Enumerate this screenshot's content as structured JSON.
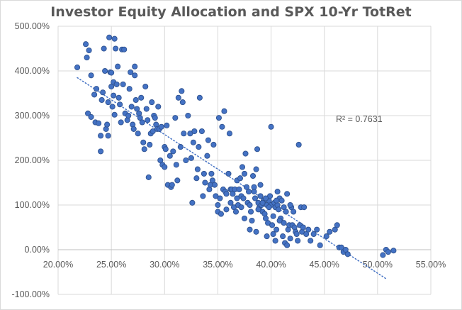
{
  "chart_data": {
    "type": "scatter",
    "title": "Investor Equity Allocation and SPX 10-Yr TotRet",
    "xlabel": "",
    "ylabel": "",
    "xlim": [
      0.2,
      0.55
    ],
    "ylim": [
      -1.0,
      5.0
    ],
    "x_ticks": [
      "20.00%",
      "25.00%",
      "30.00%",
      "35.00%",
      "40.00%",
      "45.00%",
      "50.00%",
      "55.00%"
    ],
    "y_ticks": [
      "500.00%",
      "400.00%",
      "300.00%",
      "200.00%",
      "100.00%",
      "0.00%",
      "-100.00%"
    ],
    "grid": true,
    "legend": "none",
    "colors": {
      "marker": "#4472c4",
      "marker_edge": "#2f528f",
      "trendline": "#4472c4",
      "grid": "#d9d9d9"
    },
    "trendline": {
      "type": "linear",
      "r_squared_label": "R² = 0.7631",
      "x_start": 0.218,
      "y_start": 3.85,
      "x_end": 0.508,
      "y_end": -0.65
    },
    "points": [
      [
        0.218,
        4.08
      ],
      [
        0.226,
        4.6
      ],
      [
        0.227,
        4.3
      ],
      [
        0.229,
        4.46
      ],
      [
        0.231,
        3.9
      ],
      [
        0.234,
        3.47
      ],
      [
        0.236,
        3.6
      ],
      [
        0.228,
        3.05
      ],
      [
        0.231,
        2.97
      ],
      [
        0.235,
        2.85
      ],
      [
        0.238,
        2.83
      ],
      [
        0.24,
        2.2
      ],
      [
        0.24,
        2.55
      ],
      [
        0.241,
        3.35
      ],
      [
        0.242,
        3.52
      ],
      [
        0.243,
        4.5
      ],
      [
        0.244,
        4.0
      ],
      [
        0.245,
        2.7
      ],
      [
        0.246,
        2.8
      ],
      [
        0.247,
        2.55
      ],
      [
        0.247,
        3.3
      ],
      [
        0.248,
        4.75
      ],
      [
        0.249,
        3.97
      ],
      [
        0.25,
        3.96
      ],
      [
        0.25,
        3.65
      ],
      [
        0.251,
        3.2
      ],
      [
        0.252,
        3.45
      ],
      [
        0.252,
        3.75
      ],
      [
        0.253,
        4.72
      ],
      [
        0.253,
        3.02
      ],
      [
        0.254,
        4.5
      ],
      [
        0.255,
        3.7
      ],
      [
        0.256,
        4.1
      ],
      [
        0.257,
        3.4
      ],
      [
        0.258,
        3.25
      ],
      [
        0.259,
        2.85
      ],
      [
        0.26,
        4.48
      ],
      [
        0.261,
        3.7
      ],
      [
        0.262,
        4.48
      ],
      [
        0.263,
        3.05
      ],
      [
        0.265,
        2.9
      ],
      [
        0.266,
        3.0
      ],
      [
        0.267,
        3.6
      ],
      [
        0.268,
        3.97
      ],
      [
        0.269,
        3.2
      ],
      [
        0.27,
        2.8
      ],
      [
        0.271,
        2.7
      ],
      [
        0.272,
        4.1
      ],
      [
        0.272,
        3.9
      ],
      [
        0.273,
        3.35
      ],
      [
        0.274,
        3.15
      ],
      [
        0.275,
        2.6
      ],
      [
        0.276,
        3.05
      ],
      [
        0.277,
        2.95
      ],
      [
        0.278,
        3.4
      ],
      [
        0.279,
        2.85
      ],
      [
        0.28,
        2.4
      ],
      [
        0.281,
        2.25
      ],
      [
        0.282,
        3.65
      ],
      [
        0.283,
        3.15
      ],
      [
        0.284,
        2.9
      ],
      [
        0.285,
        1.62
      ],
      [
        0.286,
        2.35
      ],
      [
        0.287,
        2.6
      ],
      [
        0.288,
        3.3
      ],
      [
        0.289,
        2.65
      ],
      [
        0.29,
        3.0
      ],
      [
        0.291,
        2.95
      ],
      [
        0.292,
        2.8
      ],
      [
        0.293,
        2.7
      ],
      [
        0.294,
        3.2
      ],
      [
        0.295,
        2.7
      ],
      [
        0.296,
        2.0
      ],
      [
        0.297,
        2.75
      ],
      [
        0.298,
        1.9
      ],
      [
        0.3,
        2.3
      ],
      [
        0.3,
        1.85
      ],
      [
        0.301,
        2.25
      ],
      [
        0.302,
        2.78
      ],
      [
        0.303,
        1.45
      ],
      [
        0.305,
        2.1
      ],
      [
        0.306,
        1.4
      ],
      [
        0.307,
        1.45
      ],
      [
        0.308,
        2.2
      ],
      [
        0.31,
        2.95
      ],
      [
        0.311,
        1.9
      ],
      [
        0.312,
        1.55
      ],
      [
        0.313,
        3.4
      ],
      [
        0.315,
        2.3
      ],
      [
        0.316,
        3.55
      ],
      [
        0.317,
        3.3
      ],
      [
        0.318,
        2.6
      ],
      [
        0.32,
        2.0
      ],
      [
        0.322,
        3.0
      ],
      [
        0.324,
        2.6
      ],
      [
        0.325,
        2.05
      ],
      [
        0.326,
        1.05
      ],
      [
        0.327,
        2.4
      ],
      [
        0.328,
        2.65
      ],
      [
        0.33,
        1.6
      ],
      [
        0.331,
        1.8
      ],
      [
        0.332,
        2.3
      ],
      [
        0.333,
        3.4
      ],
      [
        0.335,
        2.65
      ],
      [
        0.336,
        1.2
      ],
      [
        0.337,
        1.7
      ],
      [
        0.338,
        1.5
      ],
      [
        0.34,
        2.1
      ],
      [
        0.341,
        2.45
      ],
      [
        0.342,
        1.35
      ],
      [
        0.343,
        1.45
      ],
      [
        0.344,
        1.7
      ],
      [
        0.345,
        1.55
      ],
      [
        0.346,
        2.35
      ],
      [
        0.347,
        1.45
      ],
      [
        0.348,
        1.2
      ],
      [
        0.35,
        1.0
      ],
      [
        0.35,
        0.85
      ],
      [
        0.351,
        2.95
      ],
      [
        0.352,
        1.15
      ],
      [
        0.353,
        0.8
      ],
      [
        0.354,
        2.75
      ],
      [
        0.355,
        1.35
      ],
      [
        0.356,
        3.1
      ],
      [
        0.357,
        1.3
      ],
      [
        0.358,
        1.25
      ],
      [
        0.36,
        1.7
      ],
      [
        0.361,
        2.6
      ],
      [
        0.362,
        1.35
      ],
      [
        0.363,
        1.35
      ],
      [
        0.364,
        1.25
      ],
      [
        0.365,
        0.95
      ],
      [
        0.366,
        1.35
      ],
      [
        0.367,
        0.85
      ],
      [
        0.368,
        1.55
      ],
      [
        0.369,
        1.0
      ],
      [
        0.37,
        1.35
      ],
      [
        0.371,
        1.6
      ],
      [
        0.372,
        1.2
      ],
      [
        0.373,
        1.85
      ],
      [
        0.374,
        1.15
      ],
      [
        0.375,
        1.7
      ],
      [
        0.376,
        2.15
      ],
      [
        0.377,
        1.4
      ],
      [
        0.378,
        1.05
      ],
      [
        0.379,
        1.3
      ],
      [
        0.38,
        1.0
      ],
      [
        0.381,
        0.85
      ],
      [
        0.382,
        0.65
      ],
      [
        0.383,
        1.65
      ],
      [
        0.384,
        1.3
      ],
      [
        0.385,
        1.15
      ],
      [
        0.386,
        1.8
      ],
      [
        0.387,
        2.25
      ],
      [
        0.388,
        1.05
      ],
      [
        0.389,
        0.95
      ],
      [
        0.39,
        1.2
      ],
      [
        0.391,
        1.0
      ],
      [
        0.392,
        0.85
      ],
      [
        0.393,
        1.1
      ],
      [
        0.394,
        0.8
      ],
      [
        0.395,
        0.7
      ],
      [
        0.396,
        1.0
      ],
      [
        0.397,
        0.6
      ],
      [
        0.398,
        1.1
      ],
      [
        0.399,
        1.2
      ],
      [
        0.4,
        2.75
      ],
      [
        0.4,
        1.0
      ],
      [
        0.401,
        0.55
      ],
      [
        0.402,
        0.35
      ],
      [
        0.403,
        1.05
      ],
      [
        0.404,
        0.95
      ],
      [
        0.405,
        0.45
      ],
      [
        0.406,
        1.0
      ],
      [
        0.407,
        0.9
      ],
      [
        0.408,
        1.15
      ],
      [
        0.409,
        0.7
      ],
      [
        0.41,
        1.1
      ],
      [
        0.411,
        0.3
      ],
      [
        0.412,
        0.95
      ],
      [
        0.413,
        0.15
      ],
      [
        0.414,
        0.85
      ],
      [
        0.415,
        0.1
      ],
      [
        0.416,
        0.45
      ],
      [
        0.417,
        0.55
      ],
      [
        0.418,
        0.25
      ],
      [
        0.419,
        0.95
      ],
      [
        0.42,
        0.55
      ],
      [
        0.421,
        0.85
      ],
      [
        0.422,
        0.5
      ],
      [
        0.423,
        0.4
      ],
      [
        0.424,
        0.35
      ],
      [
        0.425,
        0.2
      ],
      [
        0.426,
        2.35
      ],
      [
        0.427,
        0.55
      ],
      [
        0.428,
        0.95
      ],
      [
        0.429,
        0.4
      ],
      [
        0.43,
        0.5
      ],
      [
        0.431,
        0.95
      ],
      [
        0.433,
        0.35
      ],
      [
        0.435,
        0.45
      ],
      [
        0.437,
        0.2
      ],
      [
        0.44,
        0.35
      ],
      [
        0.443,
        0.45
      ],
      [
        0.446,
        0.1
      ],
      [
        0.452,
        0.3
      ],
      [
        0.455,
        0.4
      ],
      [
        0.46,
        0.45
      ],
      [
        0.462,
        0.55
      ],
      [
        0.464,
        0.05
      ],
      [
        0.466,
        0.05
      ],
      [
        0.468,
        -0.05
      ],
      [
        0.47,
        0.0
      ],
      [
        0.472,
        -0.1
      ],
      [
        0.505,
        -0.12
      ],
      [
        0.508,
        0.0
      ],
      [
        0.51,
        -0.05
      ],
      [
        0.515,
        -0.02
      ],
      [
        0.395,
        1.15
      ],
      [
        0.405,
        1.1
      ],
      [
        0.398,
        0.95
      ],
      [
        0.392,
        1.05
      ],
      [
        0.388,
        0.9
      ],
      [
        0.402,
        0.75
      ],
      [
        0.408,
        0.65
      ],
      [
        0.412,
        0.6
      ],
      [
        0.375,
        0.7
      ],
      [
        0.372,
        0.95
      ],
      [
        0.38,
        0.45
      ],
      [
        0.386,
        0.4
      ],
      [
        0.396,
        0.3
      ],
      [
        0.404,
        0.2
      ],
      [
        0.358,
        0.9
      ],
      [
        0.362,
        1.05
      ],
      [
        0.368,
        1.15
      ],
      [
        0.384,
        1.4
      ],
      [
        0.39,
        1.45
      ],
      [
        0.406,
        1.3
      ],
      [
        0.415,
        1.25
      ],
      [
        0.418,
        1.0
      ]
    ]
  }
}
